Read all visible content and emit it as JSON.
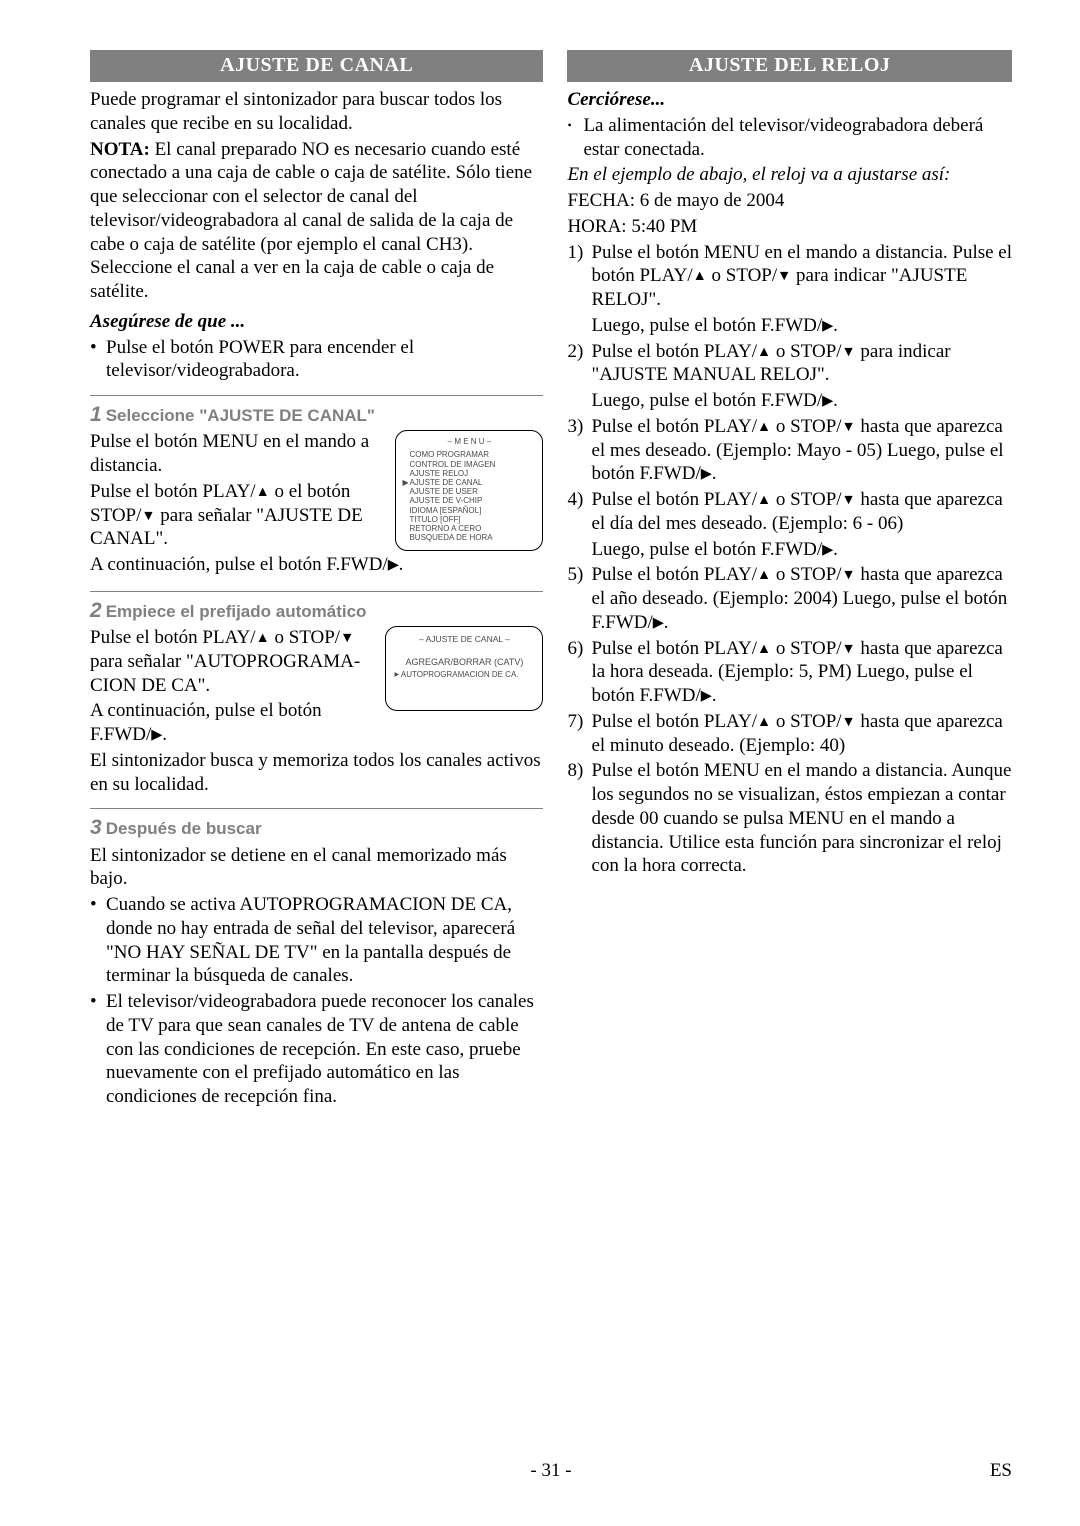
{
  "page": {
    "number": "- 31 -",
    "lang": "ES"
  },
  "left": {
    "banner": "AJUSTE DE CANAL",
    "intro": "Puede programar el sintonizador para buscar todos los canales que recibe en su localidad.",
    "nota_label": "NOTA:",
    "nota_body": " El canal preparado NO es necesario cuando esté conectado a una caja de cable o caja de satélite. Sólo tiene que seleccionar con el selector de canal del televisor/videograbadora al canal de salida de la caja de cabe o caja de satélite (por ejemplo el canal CH3). Seleccione el canal a ver en la caja de cable o caja de satélite.",
    "asegurese_head": "Asegúrese de que ...",
    "asegurese_bullet": "Pulse el botón POWER para encender el televisor/videograbadora.",
    "step1": {
      "num": "1",
      "title": "Seleccione \"AJUSTE DE CANAL\"",
      "p1": "Pulse el botón MENU en el mando a distancia.",
      "p2a": "Pulse el botón PLAY/",
      "p2b": " o el botón STOP/",
      "p2c": " para señalar \"AJUSTE DE CANAL\".",
      "p3a": "A continuación, pulse el botón F.FWD/",
      "p3b": ".",
      "menu": {
        "title": "– M E N U –",
        "items": [
          "COMO PROGRAMAR",
          "CONTROL DE IMAGEN",
          "AJUSTE RELOJ",
          "AJUSTE DE CANAL",
          "AJUSTE DE USER",
          "AJUSTE DE V-CHIP",
          "IDIOMA [ESPAÑOL]",
          "TITULO [OFF]",
          "RETORNO A CERO",
          "BUSQUEDA DE HORA"
        ],
        "marker_index": 3
      }
    },
    "step2": {
      "num": "2",
      "title": "Empiece el prefijado automático",
      "p1a": "Pulse el botón PLAY/",
      "p1b": " o STOP/",
      "p1c": " para señalar \"AUTOPROGRAMA-CION DE CA\".",
      "p2a": "A continuación, pulse el botón F.FWD/",
      "p2b": ".",
      "p3": "El sintonizador busca y memoriza todos los canales activos en su localidad.",
      "menu": {
        "title": "– AJUSTE DE CANAL –",
        "line1": "AGREGAR/BORRAR (CATV)",
        "line2": "AUTOPROGRAMACION DE CA."
      }
    },
    "step3": {
      "num": "3",
      "title": "Después de buscar",
      "p1": "El sintonizador se detiene en el canal memorizado más bajo.",
      "b1": "Cuando se activa AUTOPROGRAMACION DE CA, donde no hay entrada de señal del televisor, aparecerá \"NO HAY SEÑAL DE TV\" en la pantalla después de terminar la búsqueda de canales.",
      "b2": "El televisor/videograbadora puede reconocer los canales de TV para que sean canales de TV de antena de cable con las condiciones de recepción. En este caso, pruebe nuevamente con el prefijado automático en las condiciones de recepción fina."
    }
  },
  "right": {
    "banner": "AJUSTE DEL RELOJ",
    "cerciorese": "Cerciórese...",
    "cerc_bullet": "La alimentación del televisor/videograbadora deberá estar conectada.",
    "ejemplo": "En el ejemplo de abajo, el reloj va a ajustarse así:",
    "fecha": "FECHA: 6 de mayo de 2004",
    "hora": "HORA: 5:40 PM",
    "items": [
      {
        "n": "1)",
        "a": "Pulse el botón MENU en el mando a distancia. Pulse el botón PLAY/",
        "b": " o STOP/",
        "c": " para indicar \"AJUSTE RELOJ\".",
        "luego_a": "Luego, pulse el botón F.FWD/",
        "luego_b": "."
      },
      {
        "n": "2)",
        "a": "Pulse el botón PLAY/",
        "b": " o STOP/",
        "c": " para indicar \"AJUSTE MANUAL RELOJ\".",
        "luego_a": "Luego, pulse el botón F.FWD/",
        "luego_b": "."
      },
      {
        "n": "3)",
        "a": "Pulse el botón PLAY/",
        "b": " o STOP/",
        "c": " hasta que aparezca el mes deseado. (Ejemplo: Mayo - 05) Luego, pulse el botón F.FWD/",
        "d": "."
      },
      {
        "n": "4)",
        "a": "Pulse el botón PLAY/",
        "b": " o STOP/",
        "c": " hasta que aparezca el día del mes deseado. (Ejemplo: 6 - 06)",
        "luego_a": "Luego, pulse el botón F.FWD/",
        "luego_b": "."
      },
      {
        "n": "5)",
        "a": "Pulse el botón PLAY/",
        "b": " o STOP/",
        "c": " hasta que aparezca el año deseado. (Ejemplo: 2004) Luego, pulse el botón F.FWD/",
        "d": "."
      },
      {
        "n": "6)",
        "a": "Pulse el botón PLAY/",
        "b": " o STOP/",
        "c": " hasta que aparezca la hora deseada. (Ejemplo: 5, PM) Luego, pulse el botón F.FWD/",
        "d": "."
      },
      {
        "n": "7)",
        "a": "Pulse el botón PLAY/",
        "b": " o STOP/",
        "c": " hasta que aparezca el minuto deseado. (Ejemplo: 40)"
      },
      {
        "n": "8)",
        "plain": "Pulse el botón MENU en el mando a distancia. Aunque los segundos no se visualizan, éstos empiezan a contar desde 00 cuando se pulsa MENU en el mando a distancia. Utilice esta función para sincronizar el reloj con la hora correcta."
      }
    ]
  },
  "glyph": {
    "up": "▲",
    "down": "▼",
    "right": "▶"
  }
}
